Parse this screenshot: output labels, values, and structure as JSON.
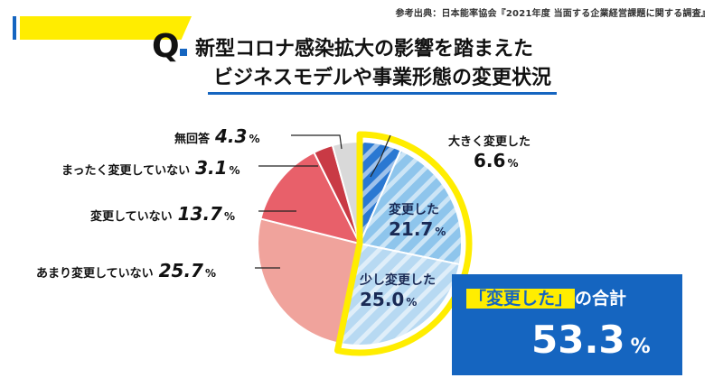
{
  "source": "参考出典：日本能率協会『2021年度 当面する企業経営課題に関する調査』",
  "question_mark": "Q",
  "title_line1": "新型コロナ感染拡大の影響を踏まえた",
  "title_line2": "ビジネスモデルや事業形態の変更状況",
  "percent_sign": "%",
  "colors": {
    "brand_blue": "#1565c0",
    "highlight_yellow": "#ffed00"
  },
  "chart_data": {
    "type": "pie",
    "slices": [
      {
        "label": "大きく変更した",
        "value": 6.6,
        "value_text": "6.6",
        "color": "#2a78d2",
        "pattern": "stripe"
      },
      {
        "label": "変更した",
        "value": 21.7,
        "value_text": "21.7",
        "color": "#8ec5ec",
        "pattern": "stripe"
      },
      {
        "label": "少し変更した",
        "value": 25.0,
        "value_text": "25.0",
        "color": "#b7d9f2",
        "pattern": "stripe"
      },
      {
        "label": "あまり変更していない",
        "value": 25.7,
        "value_text": "25.7",
        "color": "#f0a39c",
        "pattern": "none"
      },
      {
        "label": "変更していない",
        "value": 13.7,
        "value_text": "13.7",
        "color": "#e8606a",
        "pattern": "none"
      },
      {
        "label": "まったく変更していない",
        "value": 3.1,
        "value_text": "3.1",
        "color": "#c93a45",
        "pattern": "none"
      },
      {
        "label": "無回答",
        "value": 4.3,
        "value_text": "4.3",
        "color": "#d9d9d9",
        "pattern": "none"
      }
    ],
    "start": "12 o'clock, clockwise",
    "highlight": "changed slices outlined in yellow"
  },
  "total": {
    "label_highlight": "「変更した」",
    "label_rest": "の合計",
    "value": "53.3"
  }
}
